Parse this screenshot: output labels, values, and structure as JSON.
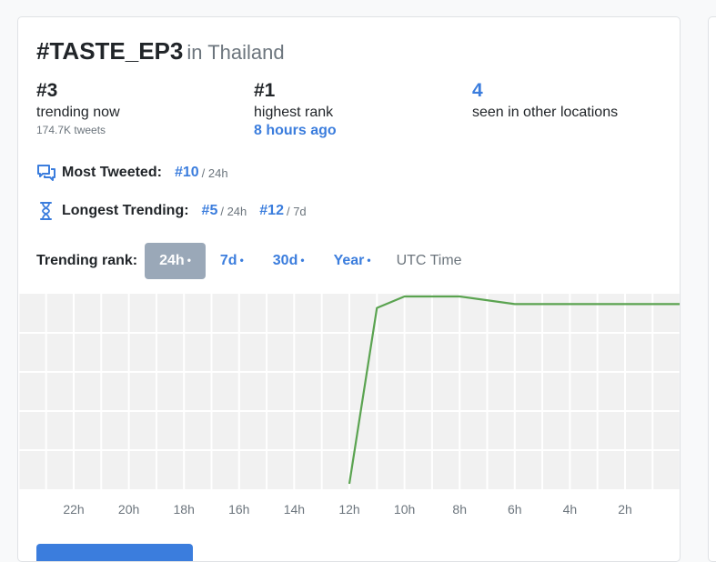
{
  "header": {
    "hashtag": "#TASTE_EP3",
    "location": "in Thailand"
  },
  "stats": {
    "current": {
      "value": "#3",
      "label": "trending now",
      "sub": "174.7K tweets"
    },
    "highest": {
      "value": "#1",
      "label": "highest rank",
      "sub": "8 hours ago"
    },
    "locations": {
      "value": "4",
      "label": "seen in other locations"
    }
  },
  "most_tweeted": {
    "label": "Most Tweeted:",
    "icon": "chat-bubbles-icon",
    "ranks": [
      {
        "rank": "#10",
        "period": "/ 24h"
      }
    ]
  },
  "longest_trending": {
    "label": "Longest Trending:",
    "icon": "hourglass-icon",
    "ranks": [
      {
        "rank": "#5",
        "period": "/ 24h"
      },
      {
        "rank": "#12",
        "period": "/ 7d"
      }
    ]
  },
  "trending_rank": {
    "label": "Trending rank:",
    "tabs": [
      {
        "label": "24h",
        "active": true
      },
      {
        "label": "7d",
        "active": false
      },
      {
        "label": "30d",
        "active": false
      },
      {
        "label": "Year",
        "active": false
      }
    ],
    "utc_label": "UTC Time"
  },
  "colors": {
    "accent": "#3b7ddd",
    "active_tab": "#9aa8b8",
    "line": "#5aa350",
    "grid_bg": "#f1f1f1"
  },
  "chart_data": {
    "type": "line",
    "x_direction": "hours ago, decreasing left to right",
    "xlim": [
      24,
      0
    ],
    "ylim": [
      50,
      1
    ],
    "grid": true,
    "xticks": [
      "22h",
      "20h",
      "18h",
      "16h",
      "14h",
      "12h",
      "10h",
      "8h",
      "6h",
      "4h",
      "2h"
    ],
    "xtick_values": [
      22,
      20,
      18,
      16,
      14,
      12,
      10,
      8,
      6,
      4,
      2
    ],
    "series": [
      {
        "x": [
          12,
          11,
          10,
          8,
          6,
          0
        ],
        "y": [
          50,
          4,
          1,
          1,
          3,
          3
        ]
      }
    ]
  }
}
